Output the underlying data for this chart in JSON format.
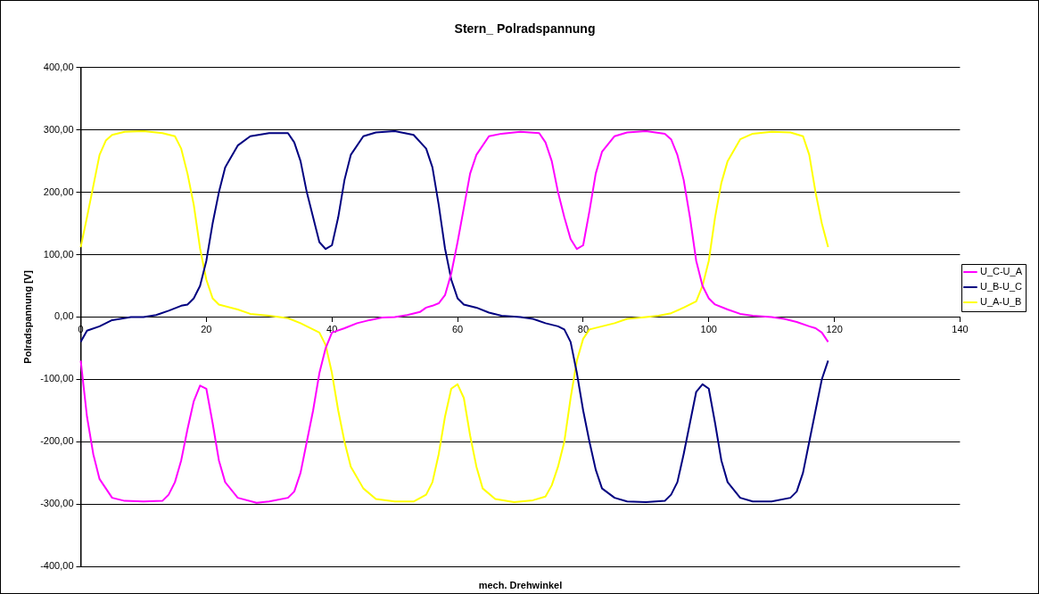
{
  "chart_data": {
    "type": "line",
    "title": "Stern_ Polradspannung",
    "xlabel": "mech. Drehwinkel",
    "ylabel": "Polradspannung [V]",
    "xlim": [
      0,
      140
    ],
    "xticks": [
      0,
      20,
      40,
      60,
      80,
      100,
      120,
      140
    ],
    "ylim": [
      -400,
      400
    ],
    "yticks": [
      {
        "value": -400,
        "label": "-400,00"
      },
      {
        "value": -300,
        "label": "-300,00"
      },
      {
        "value": -200,
        "label": "-200,00"
      },
      {
        "value": -100,
        "label": "-100,00"
      },
      {
        "value": 0,
        "label": "0,00"
      },
      {
        "value": 100,
        "label": "100,00"
      },
      {
        "value": 200,
        "label": "200,00"
      },
      {
        "value": 300,
        "label": "300,00"
      },
      {
        "value": 400,
        "label": "400,00"
      }
    ],
    "grid": "y",
    "legend": "right",
    "marker": "none",
    "line_style": "solid",
    "series": [
      {
        "name": "U_C-U_A",
        "color": "#ff00ff",
        "x": [
          0,
          1,
          2,
          3,
          5,
          7,
          10,
          13,
          14,
          15,
          16,
          17,
          18,
          19,
          20,
          21,
          22,
          23,
          25,
          28,
          30,
          33,
          34,
          35,
          36,
          37,
          38,
          39,
          40,
          42,
          44,
          46,
          48,
          50,
          52,
          54,
          55,
          56,
          57,
          58,
          59,
          60,
          61,
          62,
          63,
          65,
          67,
          70,
          73,
          74,
          75,
          76,
          77,
          78,
          79,
          80,
          81,
          82,
          83,
          85,
          87,
          90,
          93,
          94,
          95,
          96,
          97,
          98,
          99,
          100,
          101,
          103,
          105,
          107,
          110,
          112,
          114,
          116,
          117,
          118,
          119
        ],
        "values": [
          -70,
          -160,
          -220,
          -260,
          -290,
          -295,
          -296,
          -295,
          -285,
          -265,
          -230,
          -180,
          -135,
          -110,
          -115,
          -170,
          -230,
          -265,
          -290,
          -298,
          -296,
          -290,
          -280,
          -250,
          -200,
          -150,
          -90,
          -50,
          -25,
          -18,
          -10,
          -5,
          -1,
          0,
          3,
          8,
          15,
          18,
          22,
          35,
          70,
          120,
          175,
          230,
          260,
          290,
          294,
          297,
          295,
          280,
          250,
          200,
          160,
          125,
          109,
          115,
          170,
          230,
          265,
          290,
          296,
          298,
          294,
          285,
          260,
          220,
          160,
          90,
          50,
          30,
          20,
          12,
          5,
          2,
          0,
          -3,
          -8,
          -15,
          -18,
          -25,
          -40
        ]
      },
      {
        "name": "U_B-U_C",
        "color": "#000080",
        "x": [
          0,
          1,
          3,
          5,
          8,
          10,
          12,
          14,
          16,
          17,
          18,
          19,
          20,
          21,
          22,
          23,
          25,
          27,
          30,
          33,
          34,
          35,
          36,
          37,
          38,
          39,
          40,
          41,
          42,
          43,
          45,
          47,
          50,
          53,
          55,
          56,
          57,
          58,
          59,
          60,
          61,
          63,
          65,
          67,
          70,
          72,
          74,
          76,
          77,
          78,
          79,
          80,
          81,
          82,
          83,
          85,
          87,
          90,
          93,
          94,
          95,
          96,
          97,
          98,
          99,
          100,
          101,
          102,
          103,
          105,
          107,
          110,
          113,
          114,
          115,
          116,
          117,
          118,
          119
        ],
        "values": [
          -40,
          -22,
          -15,
          -5,
          0,
          0,
          3,
          10,
          18,
          20,
          30,
          50,
          90,
          150,
          200,
          240,
          275,
          290,
          295,
          295,
          280,
          250,
          200,
          160,
          120,
          109,
          115,
          160,
          220,
          260,
          290,
          296,
          298,
          292,
          270,
          240,
          180,
          110,
          60,
          30,
          20,
          15,
          7,
          2,
          0,
          -3,
          -10,
          -15,
          -20,
          -40,
          -90,
          -150,
          -200,
          -245,
          -275,
          -290,
          -296,
          -297,
          -295,
          -285,
          -265,
          -220,
          -170,
          -120,
          -108,
          -115,
          -170,
          -230,
          -265,
          -290,
          -296,
          -296,
          -290,
          -280,
          -250,
          -200,
          -150,
          -100,
          -70
        ]
      },
      {
        "name": "U_A-U_B",
        "color": "#ffff00",
        "x": [
          0,
          1,
          2,
          3,
          4,
          5,
          7,
          10,
          13,
          15,
          16,
          17,
          18,
          19,
          20,
          21,
          22,
          25,
          27,
          30,
          33,
          35,
          37,
          38,
          39,
          40,
          41,
          42,
          43,
          45,
          47,
          50,
          53,
          55,
          56,
          57,
          58,
          59,
          60,
          61,
          62,
          63,
          64,
          66,
          69,
          72,
          74,
          75,
          76,
          77,
          78,
          79,
          80,
          81,
          83,
          85,
          87,
          90,
          92,
          94,
          96,
          97,
          98,
          99,
          100,
          101,
          102,
          103,
          105,
          107,
          110,
          113,
          115,
          116,
          117,
          118,
          119
        ],
        "values": [
          112,
          160,
          210,
          260,
          283,
          292,
          297,
          298,
          295,
          290,
          270,
          230,
          180,
          110,
          60,
          30,
          20,
          12,
          5,
          2,
          -2,
          -10,
          -20,
          -25,
          -45,
          -90,
          -150,
          -200,
          -240,
          -275,
          -292,
          -296,
          -296,
          -285,
          -265,
          -220,
          -160,
          -115,
          -108,
          -130,
          -190,
          -240,
          -275,
          -292,
          -297,
          -294,
          -288,
          -270,
          -240,
          -200,
          -130,
          -70,
          -35,
          -20,
          -15,
          -10,
          -3,
          0,
          2,
          6,
          15,
          20,
          25,
          50,
          90,
          160,
          215,
          250,
          285,
          294,
          297,
          296,
          290,
          260,
          200,
          150,
          112
        ]
      }
    ]
  }
}
